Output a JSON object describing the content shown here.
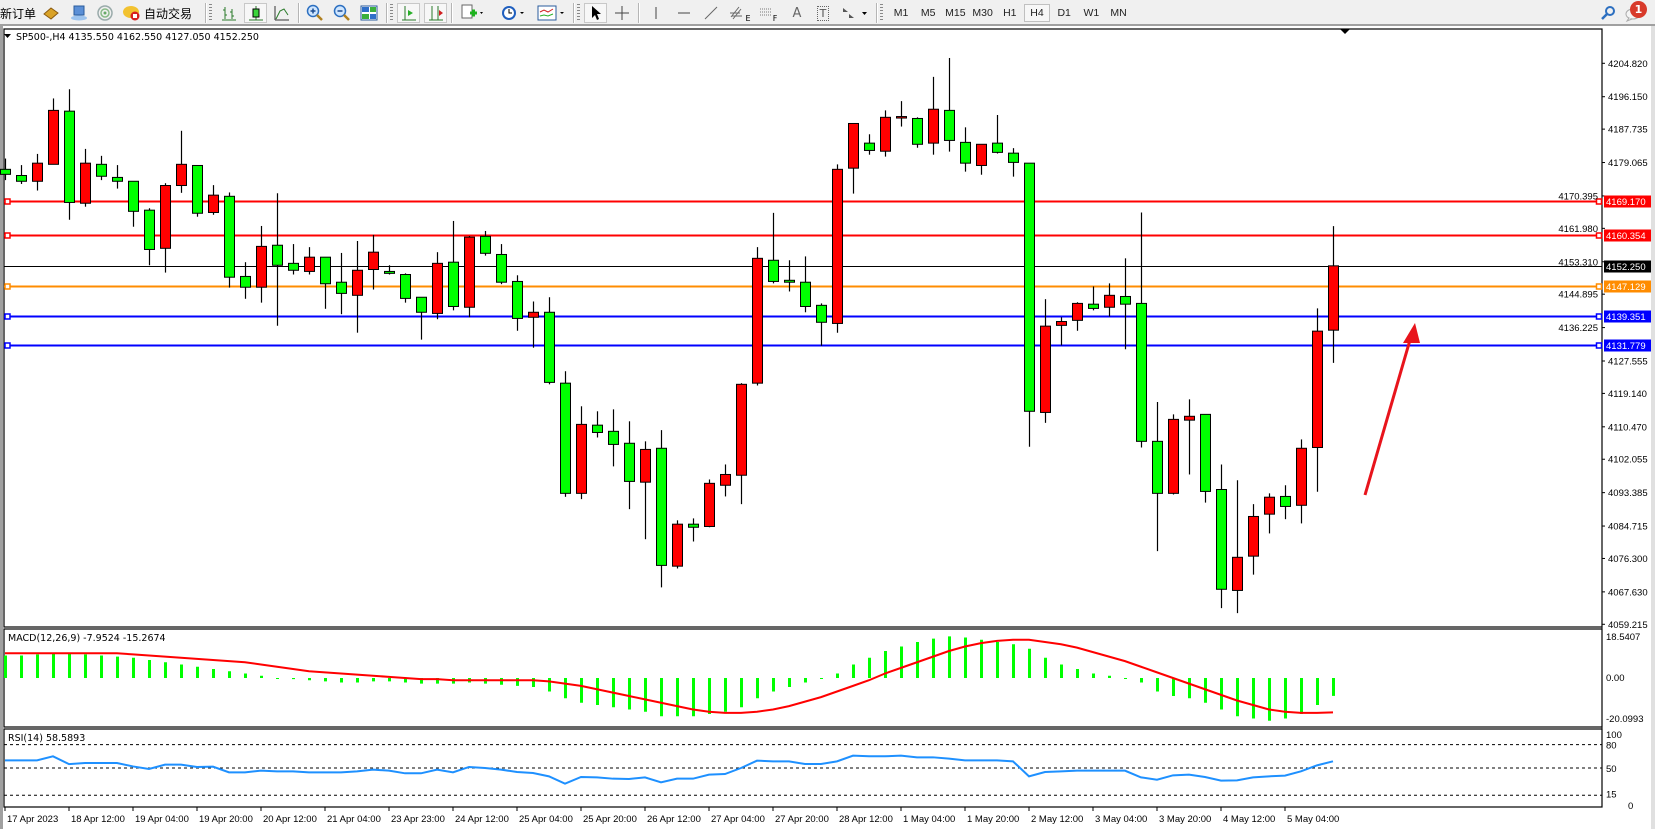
{
  "toolbar": {
    "new_order": "新订单",
    "auto_trading": "自动交易",
    "timeframes": [
      "M1",
      "M5",
      "M15",
      "M30",
      "H1",
      "H4",
      "D1",
      "W1",
      "MN"
    ],
    "active_timeframe": "H4",
    "notification_count": "1",
    "drawing_tool_suffixes": {
      "fibo_channel": "E",
      "fibo_levels": "F",
      "text": "A",
      "text_label": "T"
    }
  },
  "chart": {
    "header": "SP500-,H4  4135.550 4162.550 4127.050 4152.250",
    "colors": {
      "bull": "#ff0000",
      "bear": "#00ff00",
      "wick": "#000000"
    },
    "price_axis": [
      "4204.820",
      "4196.150",
      "4187.735",
      "4179.065",
      "4170.395",
      "4161.980",
      "4153.310",
      "4144.895",
      "4136.225",
      "4127.555",
      "4119.140",
      "4110.470",
      "4102.055",
      "4093.385",
      "4084.715",
      "4076.300",
      "4067.630",
      "4059.215"
    ],
    "levels": [
      {
        "value": 4169.17,
        "label": "4169.170",
        "color": "#ff0000",
        "type": "drawn"
      },
      {
        "value": 4160.354,
        "label": "4160.354",
        "color": "#ff0000",
        "type": "drawn"
      },
      {
        "value": 4152.25,
        "label": "4152.250",
        "color": "#000000",
        "type": "bid"
      },
      {
        "value": 4147.129,
        "label": "4147.129",
        "color": "#ff8c00",
        "type": "drawn"
      },
      {
        "value": 4139.351,
        "label": "4139.351",
        "color": "#0000ff",
        "type": "drawn"
      },
      {
        "value": 4131.779,
        "label": "4131.779",
        "color": "#0000ff",
        "type": "drawn"
      }
    ],
    "candles": [
      [
        4177.3,
        4180.1,
        4174.5,
        4176.0
      ],
      [
        4175.7,
        4178.4,
        4173.5,
        4174.2
      ],
      [
        4174.2,
        4181.3,
        4171.8,
        4178.9
      ],
      [
        4178.6,
        4195.7,
        4178.6,
        4192.6
      ],
      [
        4192.4,
        4198.1,
        4164.2,
        4168.7
      ],
      [
        4168.5,
        4182.6,
        4167.6,
        4178.9
      ],
      [
        4178.6,
        4180.8,
        4174.5,
        4175.5
      ],
      [
        4175.2,
        4178.4,
        4172.3,
        4174.2
      ],
      [
        4174.2,
        4174.2,
        4162.4,
        4166.4
      ],
      [
        4166.7,
        4167.2,
        4152.4,
        4156.5
      ],
      [
        4156.8,
        4173.7,
        4150.5,
        4173.1
      ],
      [
        4173.1,
        4187.3,
        4171.2,
        4178.6
      ],
      [
        4178.3,
        4178.3,
        4165.0,
        4165.9
      ],
      [
        4166.1,
        4173.2,
        4165.5,
        4170.6
      ],
      [
        4170.3,
        4171.3,
        4146.6,
        4149.3
      ],
      [
        4149.5,
        4153.2,
        4143.7,
        4146.7
      ],
      [
        4146.7,
        4162.6,
        4142.7,
        4157.3
      ],
      [
        4157.6,
        4171.1,
        4136.7,
        4152.4
      ],
      [
        4152.9,
        4157.9,
        4150.0,
        4151.1
      ],
      [
        4150.8,
        4157.1,
        4150.0,
        4154.5
      ],
      [
        4154.5,
        4154.5,
        4141.1,
        4147.6
      ],
      [
        4148.0,
        4155.6,
        4139.7,
        4145.1
      ],
      [
        4144.6,
        4158.7,
        4134.9,
        4151.1
      ],
      [
        4151.3,
        4160.3,
        4146.1,
        4155.8
      ],
      [
        4150.8,
        4152.4,
        4150.0,
        4150.3
      ],
      [
        4150.0,
        4150.3,
        4142.7,
        4143.8
      ],
      [
        4144.1,
        4144.1,
        4133.1,
        4140.2
      ],
      [
        4139.9,
        4155.8,
        4138.4,
        4152.9
      ],
      [
        4153.2,
        4163.9,
        4140.7,
        4141.7
      ],
      [
        4141.5,
        4160.0,
        4138.9,
        4159.7
      ],
      [
        4159.9,
        4161.3,
        4154.9,
        4155.5
      ],
      [
        4155.2,
        4157.9,
        4147.5,
        4148.0
      ],
      [
        4148.2,
        4149.8,
        4135.4,
        4138.6
      ],
      [
        4138.9,
        4143.0,
        4131.0,
        4140.2
      ],
      [
        4140.2,
        4144.1,
        4121.5,
        4122.0
      ],
      [
        4121.8,
        4124.9,
        4092.3,
        4093.2
      ],
      [
        4093.2,
        4115.8,
        4091.7,
        4111.1
      ],
      [
        4110.9,
        4114.5,
        4107.7,
        4109.0
      ],
      [
        4109.3,
        4115.0,
        4100.2,
        4105.9
      ],
      [
        4106.2,
        4111.9,
        4089.1,
        4096.3
      ],
      [
        4096.1,
        4106.7,
        4081.3,
        4104.6
      ],
      [
        4104.9,
        4109.6,
        4068.8,
        4074.5
      ],
      [
        4074.3,
        4086.2,
        4073.7,
        4085.2
      ],
      [
        4085.2,
        4086.7,
        4080.7,
        4084.4
      ],
      [
        4084.6,
        4096.8,
        4084.4,
        4095.8
      ],
      [
        4095.3,
        4100.7,
        4092.4,
        4098.1
      ],
      [
        4097.9,
        4121.8,
        4090.4,
        4121.5
      ],
      [
        4121.8,
        4157.1,
        4121.2,
        4154.2
      ],
      [
        4153.7,
        4166.0,
        4147.7,
        4148.2
      ],
      [
        4148.5,
        4153.7,
        4145.6,
        4148.0
      ],
      [
        4148.0,
        4154.7,
        4140.2,
        4141.7
      ],
      [
        4142.0,
        4142.5,
        4131.5,
        4137.6
      ],
      [
        4137.3,
        4178.6,
        4134.9,
        4177.3
      ],
      [
        4177.6,
        4189.2,
        4171.0,
        4189.2
      ],
      [
        4184.1,
        4186.4,
        4181.1,
        4182.2
      ],
      [
        4182.0,
        4192.6,
        4180.6,
        4190.8
      ],
      [
        4190.9,
        4195.0,
        4188.4,
        4191.0
      ],
      [
        4190.5,
        4190.8,
        4182.9,
        4183.8
      ],
      [
        4184.1,
        4201.3,
        4181.1,
        4192.9
      ],
      [
        4192.6,
        4206.2,
        4181.9,
        4184.8
      ],
      [
        4184.3,
        4188.2,
        4176.7,
        4178.9
      ],
      [
        4178.3,
        4183.8,
        4175.9,
        4183.8
      ],
      [
        4184.1,
        4191.4,
        4181.4,
        4181.7
      ],
      [
        4181.5,
        4182.8,
        4175.4,
        4179.1
      ],
      [
        4178.9,
        4178.9,
        4105.3,
        4114.5
      ],
      [
        4114.2,
        4143.6,
        4111.5,
        4136.6
      ],
      [
        4136.8,
        4138.9,
        4131.6,
        4137.8
      ],
      [
        4138.1,
        4142.8,
        4135.4,
        4142.5
      ],
      [
        4142.3,
        4146.9,
        4140.7,
        4141.2
      ],
      [
        4141.5,
        4147.7,
        4139.1,
        4144.6
      ],
      [
        4144.3,
        4154.2,
        4130.6,
        4142.3
      ],
      [
        4142.5,
        4166.1,
        4105.1,
        4106.7
      ],
      [
        4106.7,
        4116.9,
        4078.2,
        4093.2
      ],
      [
        4093.2,
        4113.7,
        4092.9,
        4112.4
      ],
      [
        4112.2,
        4117.6,
        4098.1,
        4113.2
      ],
      [
        4113.7,
        4113.7,
        4090.8,
        4093.7
      ],
      [
        4094.2,
        4100.7,
        4063.4,
        4068.3
      ],
      [
        4068.0,
        4096.6,
        4062.1,
        4076.6
      ],
      [
        4076.9,
        4090.4,
        4072.1,
        4087.2
      ],
      [
        4087.8,
        4093.2,
        4082.8,
        4092.2
      ],
      [
        4092.4,
        4095.3,
        4086.5,
        4089.8
      ],
      [
        4090.1,
        4107.2,
        4085.4,
        4104.9
      ],
      [
        4105.1,
        4141.2,
        4093.6,
        4135.3
      ],
      [
        4135.55,
        4162.55,
        4127.05,
        4152.25
      ]
    ],
    "time_labels": [
      "17 Apr 2023",
      "18 Apr 12:00",
      "19 Apr 04:00",
      "19 Apr 20:00",
      "20 Apr 12:00",
      "21 Apr 04:00",
      "23 Apr 23:00",
      "24 Apr 12:00",
      "25 Apr 04:00",
      "25 Apr 20:00",
      "26 Apr 12:00",
      "27 Apr 04:00",
      "27 Apr 20:00",
      "28 Apr 12:00",
      "1 May 04:00",
      "1 May 20:00",
      "2 May 12:00",
      "3 May 04:00",
      "3 May 20:00",
      "4 May 12:00",
      "5 May 04:00"
    ],
    "annotation_arrow_color": "#e8141c"
  },
  "macd": {
    "label": "MACD(12,26,9) -7.9524 -15.2674",
    "axis": {
      "max": "18.5407",
      "zero": "0.00",
      "min": "-20.0993"
    },
    "histogram_color": "#00ff00",
    "signal_color": "#ff0000",
    "main": [
      10,
      10,
      10.5,
      11,
      11,
      10.5,
      10,
      9.5,
      9,
      8,
      7,
      6,
      5,
      4,
      3,
      2,
      1,
      0,
      -0.5,
      -1,
      -1.5,
      -2,
      -2,
      -1.5,
      -1.5,
      -2,
      -2.5,
      -2.5,
      -2.5,
      -2,
      -2.5,
      -3,
      -3.5,
      -4,
      -6,
      -9,
      -11,
      -12,
      -13,
      -14,
      -15,
      -17,
      -17,
      -17,
      -16,
      -15,
      -13,
      -9,
      -6,
      -4,
      -2,
      0,
      2,
      6,
      9,
      12,
      14,
      16,
      17.5,
      18.5,
      18,
      17,
      16,
      15,
      13,
      9,
      6,
      4,
      2,
      1,
      0,
      -2,
      -6,
      -8,
      -9,
      -11,
      -14,
      -17,
      -18,
      -19,
      -18,
      -16,
      -12,
      -7.9524
    ],
    "signal": [
      11,
      11,
      11,
      11,
      11,
      11,
      11,
      11,
      10.5,
      10,
      9.5,
      9,
      8.5,
      8,
      7.5,
      7,
      6,
      5,
      4,
      3,
      2.5,
      2,
      1.5,
      1,
      0.5,
      0,
      -0.5,
      -0.5,
      -1,
      -1,
      -1,
      -1,
      -1,
      -1,
      -1.5,
      -2.5,
      -3.5,
      -5,
      -6.5,
      -8,
      -9.5,
      -11,
      -12.5,
      -14,
      -15,
      -15.5,
      -15.5,
      -15,
      -14,
      -12.5,
      -10.5,
      -8.5,
      -6,
      -3.5,
      -1,
      2,
      4.5,
      7,
      9.5,
      12,
      14,
      15.5,
      16.5,
      17,
      17,
      16,
      15,
      13.5,
      11.5,
      9.5,
      7.5,
      5,
      2.5,
      0,
      -2.5,
      -5,
      -7.5,
      -10,
      -12,
      -14,
      -15,
      -15.5,
      -15.5,
      -15.2674
    ]
  },
  "rsi": {
    "label": "RSI(14) 58.5893",
    "axis": [
      "100",
      "80",
      "50",
      "15",
      "0"
    ],
    "levels": [
      80,
      50,
      15
    ],
    "line_color": "#1e90ff",
    "values": [
      59.8,
      59.8,
      59.8,
      65,
      55,
      56.4,
      56.4,
      56.4,
      52,
      48.7,
      54.3,
      54.3,
      51.3,
      51.7,
      44.4,
      44.4,
      46.6,
      45.7,
      45.7,
      44.4,
      44.4,
      44.4,
      45.7,
      47.9,
      46.6,
      43.2,
      43.2,
      47.9,
      44.4,
      51.3,
      50,
      47.9,
      44.9,
      43.6,
      39.3,
      29.9,
      38.5,
      38,
      36.3,
      35.9,
      38,
      31.6,
      36.3,
      36.3,
      41.5,
      42.3,
      50,
      59.4,
      58.5,
      58.5,
      55.1,
      55.1,
      58.5,
      65.8,
      65,
      65,
      65.8,
      63.7,
      63.7,
      62,
      59.8,
      59.8,
      59.8,
      58.5,
      39.3,
      44.9,
      45.7,
      46.6,
      46.6,
      46.6,
      46.6,
      38,
      35,
      40.6,
      41.5,
      38.5,
      33.8,
      34.2,
      38,
      39.3,
      40.2,
      45.7,
      53.4,
      58.5893
    ]
  }
}
